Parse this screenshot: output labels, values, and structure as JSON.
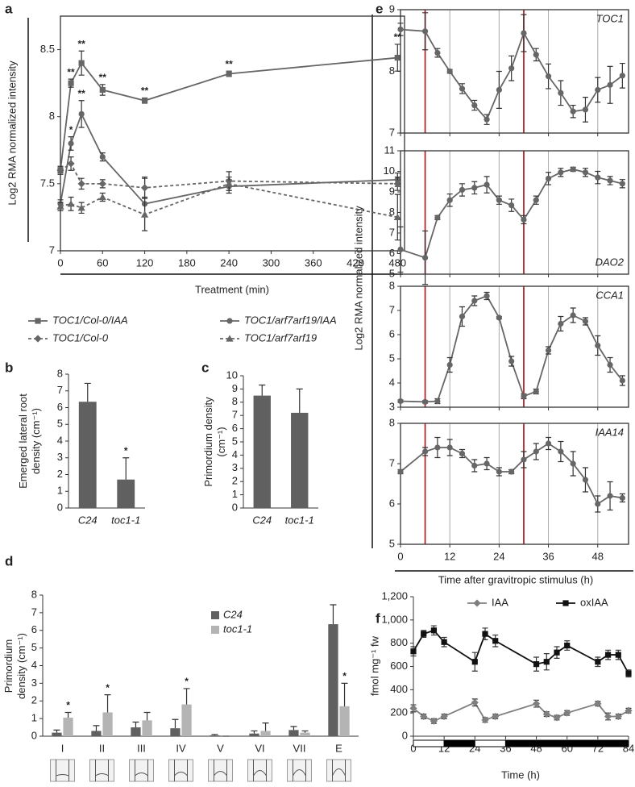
{
  "chart_data": [
    {
      "type": "line",
      "panel": "a",
      "x": [
        0,
        15,
        30,
        60,
        120,
        240,
        480
      ],
      "xlim": [
        0,
        490
      ],
      "xticks": [
        0,
        60,
        120,
        180,
        240,
        300,
        360,
        420,
        480
      ],
      "ylim": [
        7,
        8.75
      ],
      "yticks": [
        7,
        7.5,
        8,
        8.5
      ],
      "xlabel": "Treatment (min)",
      "ylabel": "Log2 RMA normalized intensity",
      "frame": true,
      "legend": "bottom",
      "italic_legend": true,
      "series": [
        {
          "name": "TOC1/Col-0/IAA",
          "color": "#666666",
          "marker": "square",
          "dashed": false,
          "values": [
            7.6,
            8.25,
            8.4,
            8.2,
            8.12,
            8.32,
            8.44
          ],
          "errors": [
            0.02,
            0.03,
            0.09,
            0.04,
            0.02,
            0.02,
            0.1
          ],
          "significance": [
            null,
            "**",
            "**",
            "**",
            "**",
            "**",
            "**"
          ]
        },
        {
          "name": "TOC1/arf7arf19/IAA",
          "color": "#666666",
          "marker": "circle",
          "dashed": false,
          "values": [
            7.35,
            7.8,
            8.02,
            7.7,
            7.35,
            7.48,
            7.53
          ],
          "errors": [
            0.03,
            0.05,
            0.1,
            0.03,
            0.2,
            0.05,
            0.05
          ],
          "significance": [
            null,
            "*",
            "**",
            null,
            null,
            null,
            null
          ]
        },
        {
          "name": "TOC1/Col-0",
          "color": "#666666",
          "marker": "diamond",
          "dashed": true,
          "values": [
            7.6,
            7.65,
            7.5,
            7.5,
            7.47,
            7.52,
            7.5
          ],
          "errors": [
            0.03,
            0.05,
            0.04,
            0.03,
            0.07,
            0.07,
            0.05
          ]
        },
        {
          "name": "TOC1/arf7arf19",
          "color": "#666666",
          "marker": "triangle",
          "dashed": true,
          "values": [
            7.33,
            7.35,
            7.32,
            7.4,
            7.27,
            7.5,
            7.25
          ],
          "errors": [
            0.03,
            0.05,
            0.04,
            0.03,
            0.12,
            0.05,
            0.17
          ]
        }
      ]
    },
    {
      "type": "bar",
      "panel": "b",
      "categories": [
        "C24",
        "toc1-1"
      ],
      "italic_categories": true,
      "values": [
        6.35,
        1.7
      ],
      "errors": [
        1.1,
        1.3
      ],
      "significance": [
        null,
        "*"
      ],
      "color": "#606060",
      "ylim": [
        0,
        8
      ],
      "yticks": [
        0,
        1,
        2,
        3,
        4,
        5,
        6,
        7,
        8
      ],
      "ylabel": "Emerged lateral root\ndensity (cm⁻¹)"
    },
    {
      "type": "bar",
      "panel": "c",
      "categories": [
        "C24",
        "toc1-1"
      ],
      "italic_categories": true,
      "values": [
        8.5,
        7.2
      ],
      "errors": [
        0.8,
        1.8
      ],
      "color": "#606060",
      "ylim": [
        0,
        10
      ],
      "yticks": [
        0,
        1,
        2,
        3,
        4,
        5,
        6,
        7,
        8,
        9,
        10
      ],
      "ylabel": "Primordium density\n(cm⁻¹)"
    },
    {
      "type": "bar",
      "panel": "d",
      "categories": [
        "I",
        "II",
        "III",
        "IV",
        "V",
        "VI",
        "VII",
        "E"
      ],
      "ylim": [
        0,
        8
      ],
      "yticks": [
        0,
        1,
        2,
        3,
        4,
        5,
        6,
        7,
        8
      ],
      "ylabel": "Primordium\ndensity (cm⁻¹)",
      "legend": "top-right",
      "italic_legend": true,
      "series": [
        {
          "name": "C24",
          "color": "#606060",
          "values": [
            0.2,
            0.3,
            0.5,
            0.45,
            0.05,
            0.15,
            0.35,
            6.35
          ],
          "errors": [
            0.15,
            0.3,
            0.3,
            0.5,
            0.05,
            0.15,
            0.2,
            1.1
          ]
        },
        {
          "name": "toc1-1",
          "color": "#b4b4b4",
          "values": [
            1.05,
            1.35,
            0.9,
            1.8,
            0,
            0.3,
            0.2,
            1.7
          ],
          "errors": [
            0.3,
            1.0,
            0.45,
            0.9,
            0,
            0.45,
            0.1,
            1.3
          ],
          "significance": [
            "*",
            "*",
            null,
            "*",
            null,
            null,
            null,
            "*"
          ]
        }
      ]
    },
    {
      "type": "line",
      "panel": "e",
      "title": "TOC1",
      "ylabel": "Log2 RMA normalized intensity",
      "frame": true,
      "color": "#666666",
      "marker": "circle",
      "x": [
        0,
        6,
        9,
        12,
        15,
        18,
        21,
        24,
        27,
        30,
        33,
        36,
        39,
        42,
        45,
        48,
        51,
        54
      ],
      "xlim": [
        0,
        55.5
      ],
      "xticks": [
        0,
        12,
        24,
        36,
        48
      ],
      "show_xtick_labels": false,
      "xgrid": true,
      "vlines": [
        6,
        30
      ],
      "vline_color": "#b3262c",
      "ylim": [
        7,
        9
      ],
      "yticks": [
        7,
        8,
        9
      ],
      "values": [
        8.68,
        8.65,
        8.3,
        8.0,
        7.72,
        7.45,
        7.22,
        7.7,
        8.05,
        8.62,
        8.27,
        7.92,
        7.65,
        7.35,
        7.38,
        7.7,
        7.78,
        7.93
      ],
      "errors": [
        0.1,
        0.3,
        0.07,
        0.03,
        0.08,
        0.08,
        0.08,
        0.3,
        0.2,
        0.3,
        0.1,
        0.2,
        0.2,
        0.1,
        0.2,
        0.2,
        0.3,
        0.2
      ]
    },
    {
      "type": "line",
      "title": "DAO2",
      "frame": true,
      "color": "#666666",
      "marker": "circle",
      "x": [
        0,
        6,
        9,
        12,
        15,
        18,
        21,
        24,
        27,
        30,
        33,
        36,
        39,
        42,
        45,
        48,
        51,
        54
      ],
      "xlim": [
        0,
        55.5
      ],
      "xticks": [
        0,
        12,
        24,
        36,
        48
      ],
      "show_xtick_labels": false,
      "xgrid": true,
      "vlines": [
        6,
        30
      ],
      "vline_color": "#b3262c",
      "ylim": [
        5,
        11
      ],
      "yticks": [
        5,
        6,
        7,
        8,
        9,
        10,
        11
      ],
      "values": [
        6.2,
        5.8,
        7.75,
        8.6,
        9.1,
        9.2,
        9.35,
        8.6,
        8.35,
        7.65,
        8.6,
        9.65,
        9.95,
        10.1,
        9.95,
        9.7,
        9.55,
        9.4
      ],
      "errors": [
        1.1,
        1.3,
        0.1,
        0.3,
        0.3,
        0.3,
        0.4,
        0.2,
        0.3,
        0.2,
        0.2,
        0.3,
        0.2,
        0.1,
        0.2,
        0.3,
        0.2,
        0.2
      ]
    },
    {
      "type": "line",
      "title": "CCA1",
      "frame": true,
      "color": "#666666",
      "marker": "circle",
      "x": [
        0,
        6,
        9,
        12,
        15,
        18,
        21,
        24,
        27,
        30,
        33,
        36,
        39,
        42,
        45,
        48,
        51,
        54
      ],
      "xlim": [
        0,
        55.5
      ],
      "xticks": [
        0,
        12,
        24,
        36,
        48
      ],
      "show_xtick_labels": false,
      "xgrid": true,
      "vlines": [
        6,
        30
      ],
      "vline_color": "#b3262c",
      "ylim": [
        3,
        8
      ],
      "yticks": [
        3,
        4,
        5,
        6,
        7,
        8
      ],
      "values": [
        3.25,
        3.22,
        3.25,
        4.75,
        6.75,
        7.4,
        7.6,
        6.7,
        4.9,
        3.45,
        3.65,
        5.35,
        6.45,
        6.8,
        6.55,
        5.55,
        4.75,
        4.1
      ],
      "errors": [
        0.05,
        0.05,
        0.1,
        0.3,
        0.4,
        0.2,
        0.15,
        0.05,
        0.2,
        0.1,
        0.1,
        0.15,
        0.3,
        0.3,
        0.15,
        0.4,
        0.3,
        0.2
      ]
    },
    {
      "type": "line",
      "title": "IAA14",
      "xlabel": "Time after gravitropic stimulus (h)",
      "frame": true,
      "color": "#666666",
      "marker": "circle",
      "x": [
        0,
        6,
        9,
        12,
        15,
        18,
        21,
        24,
        27,
        30,
        33,
        36,
        39,
        42,
        45,
        48,
        51,
        54
      ],
      "xlim": [
        0,
        55.5
      ],
      "xticks": [
        0,
        12,
        24,
        36,
        48
      ],
      "xgrid": true,
      "vlines": [
        6,
        30
      ],
      "vline_color": "#b3262c",
      "ylim": [
        5,
        8
      ],
      "yticks": [
        5,
        6,
        7,
        8
      ],
      "values": [
        6.8,
        7.3,
        7.4,
        7.4,
        7.25,
        6.95,
        7.0,
        6.8,
        6.8,
        7.1,
        7.3,
        7.5,
        7.3,
        7.0,
        6.6,
        6.0,
        6.2,
        6.15
      ],
      "errors": [
        0.05,
        0.1,
        0.25,
        0.2,
        0.1,
        0.15,
        0.15,
        0.1,
        0.05,
        0.2,
        0.2,
        0.15,
        0.25,
        0.3,
        0.3,
        0.2,
        0.35,
        0.1
      ]
    },
    {
      "type": "line",
      "panel": "f",
      "xlabel": "Time (h)",
      "ylabel": "fmol mg⁻¹ fw",
      "legend": "top",
      "x": [
        0,
        4,
        8,
        12,
        24,
        28,
        32,
        48,
        52,
        56,
        60,
        72,
        76,
        80,
        84
      ],
      "xlim": [
        0,
        84
      ],
      "xticks": [
        0,
        12,
        24,
        36,
        48,
        60,
        72,
        84
      ],
      "ylim": [
        0,
        1200
      ],
      "yticks": [
        0,
        200,
        400,
        600,
        800,
        {
          "value": 1000,
          "label": "1,000"
        },
        {
          "value": 1200,
          "label": "1,200"
        }
      ],
      "photoperiod": [
        {
          "start": 0,
          "end": 12,
          "light": true
        },
        {
          "start": 12,
          "end": 24,
          "light": false
        },
        {
          "start": 24,
          "end": 36,
          "light": true
        },
        {
          "start": 36,
          "end": 84,
          "light": false
        }
      ],
      "series": [
        {
          "name": "IAA",
          "color": "#7f7f7f",
          "marker": "diamond",
          "dashed": false,
          "values": [
            240,
            170,
            130,
            170,
            290,
            140,
            170,
            280,
            190,
            160,
            200,
            280,
            170,
            170,
            220
          ],
          "errors": [
            30,
            20,
            20,
            20,
            30,
            20,
            20,
            30,
            20,
            20,
            20,
            20,
            30,
            20,
            20
          ]
        },
        {
          "name": "oxIAA",
          "color": "#111111",
          "marker": "square",
          "dashed": false,
          "values": [
            730,
            880,
            910,
            810,
            640,
            880,
            820,
            620,
            640,
            720,
            780,
            640,
            700,
            700,
            540
          ],
          "errors": [
            40,
            30,
            40,
            40,
            80,
            50,
            50,
            60,
            70,
            50,
            40,
            40,
            40,
            40,
            30
          ]
        }
      ]
    }
  ]
}
